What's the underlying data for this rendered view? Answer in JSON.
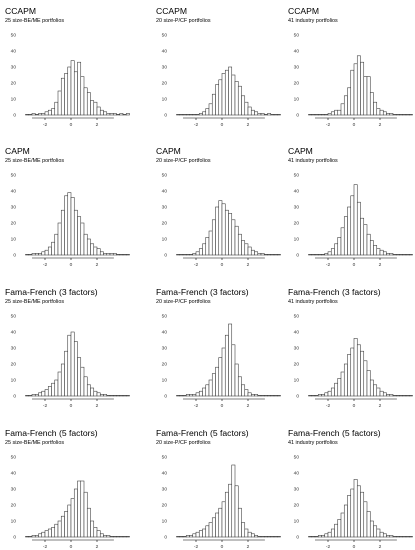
{
  "figure": {
    "background": "#ffffff",
    "bar_fill": "#ffffff",
    "bar_stroke": "#333333"
  },
  "chart_data": [
    {
      "type": "bar",
      "title": "CCAPM",
      "subtitle": "25 size-BE/ME portfolios",
      "ylim": [
        0,
        50
      ],
      "yticks": [
        0,
        10,
        20,
        30,
        40,
        50
      ],
      "xticks": [
        -2,
        0,
        2
      ],
      "xlim": [
        -4,
        4
      ],
      "bin_width": 0.25,
      "bins_start": -3.5,
      "values": [
        0,
        0,
        1,
        0,
        1,
        1,
        2,
        3,
        4,
        8,
        15,
        23,
        26,
        30,
        34,
        27,
        33,
        24,
        17,
        14,
        9,
        8,
        5,
        3,
        2,
        1,
        1,
        1,
        0,
        1,
        0,
        1
      ]
    },
    {
      "type": "bar",
      "title": "CCAPM",
      "subtitle": "20 size-P/CF portfolios",
      "ylim": [
        0,
        50
      ],
      "yticks": [
        0,
        10,
        20,
        30,
        40,
        50
      ],
      "xticks": [
        -2,
        0,
        2
      ],
      "xlim": [
        -4,
        4
      ],
      "bin_width": 0.25,
      "bins_start": -3.5,
      "values": [
        0,
        0,
        0,
        0,
        0,
        0,
        0,
        1,
        2,
        4,
        7,
        13,
        19,
        22,
        26,
        28,
        30,
        25,
        21,
        18,
        12,
        8,
        5,
        3,
        2,
        1,
        1,
        0,
        1,
        0,
        0,
        0
      ]
    },
    {
      "type": "bar",
      "title": "CCAPM",
      "subtitle": "41 industry portfolios",
      "ylim": [
        0,
        50
      ],
      "yticks": [
        0,
        10,
        20,
        30,
        40,
        50
      ],
      "xticks": [
        -2,
        0,
        2
      ],
      "xlim": [
        -4,
        4
      ],
      "bin_width": 0.25,
      "bins_start": -3.5,
      "values": [
        0,
        0,
        0,
        0,
        0,
        0,
        1,
        2,
        3,
        3,
        7,
        12,
        17,
        28,
        32,
        37,
        33,
        24,
        24,
        14,
        8,
        4,
        3,
        2,
        1,
        1,
        0,
        0,
        0,
        0,
        0,
        0
      ]
    },
    {
      "type": "bar",
      "title": "CAPM",
      "subtitle": "25 size-BE/ME portfolios",
      "ylim": [
        0,
        50
      ],
      "yticks": [
        0,
        10,
        20,
        30,
        40,
        50
      ],
      "xticks": [
        -2,
        0,
        2
      ],
      "xlim": [
        -4,
        4
      ],
      "bin_width": 0.25,
      "bins_start": -3.5,
      "values": [
        0,
        0,
        1,
        1,
        1,
        2,
        3,
        5,
        8,
        13,
        20,
        28,
        37,
        39,
        36,
        28,
        24,
        20,
        13,
        10,
        7,
        5,
        4,
        2,
        1,
        1,
        1,
        1,
        0,
        0,
        0,
        0
      ]
    },
    {
      "type": "bar",
      "title": "CAPM",
      "subtitle": "20 size-P/CF portfolios",
      "ylim": [
        0,
        50
      ],
      "yticks": [
        0,
        10,
        20,
        30,
        40,
        50
      ],
      "xticks": [
        -2,
        0,
        2
      ],
      "xlim": [
        -4,
        4
      ],
      "bin_width": 0.25,
      "bins_start": -3.5,
      "values": [
        0,
        0,
        0,
        0,
        0,
        1,
        2,
        4,
        7,
        11,
        15,
        22,
        30,
        34,
        32,
        28,
        26,
        22,
        18,
        13,
        9,
        7,
        5,
        3,
        2,
        1,
        1,
        0,
        0,
        0,
        0,
        0
      ]
    },
    {
      "type": "bar",
      "title": "CAPM",
      "subtitle": "41 industry portfolios",
      "ylim": [
        0,
        50
      ],
      "yticks": [
        0,
        10,
        20,
        30,
        40,
        50
      ],
      "xticks": [
        -2,
        0,
        2
      ],
      "xlim": [
        -4,
        4
      ],
      "bin_width": 0.25,
      "bins_start": -3.5,
      "values": [
        0,
        0,
        0,
        0,
        0,
        1,
        2,
        4,
        7,
        11,
        17,
        24,
        30,
        37,
        44,
        33,
        23,
        19,
        13,
        9,
        6,
        4,
        3,
        2,
        1,
        1,
        0,
        0,
        0,
        0,
        0,
        0
      ]
    },
    {
      "type": "bar",
      "title": "Fama-French (3 factors)",
      "subtitle": "25 size-BE/ME portfolios",
      "ylim": [
        0,
        50
      ],
      "yticks": [
        0,
        10,
        20,
        30,
        40,
        50
      ],
      "xticks": [
        -2,
        0,
        2
      ],
      "xlim": [
        -4,
        4
      ],
      "bin_width": 0.25,
      "bins_start": -3.5,
      "values": [
        0,
        0,
        1,
        1,
        2,
        3,
        4,
        6,
        8,
        10,
        15,
        20,
        28,
        38,
        40,
        34,
        24,
        18,
        12,
        7,
        5,
        3,
        2,
        1,
        1,
        0,
        0,
        0,
        0,
        0,
        0,
        0
      ]
    },
    {
      "type": "bar",
      "title": "Fama-French (3 factors)",
      "subtitle": "20 size-P/CF portfolios",
      "ylim": [
        0,
        50
      ],
      "yticks": [
        0,
        10,
        20,
        30,
        40,
        50
      ],
      "xticks": [
        -2,
        0,
        2
      ],
      "xlim": [
        -4,
        4
      ],
      "bin_width": 0.25,
      "bins_start": -3.5,
      "values": [
        0,
        0,
        0,
        1,
        1,
        1,
        2,
        3,
        5,
        7,
        10,
        14,
        18,
        24,
        30,
        38,
        45,
        32,
        20,
        12,
        7,
        4,
        2,
        1,
        1,
        0,
        0,
        0,
        0,
        0,
        0,
        0
      ]
    },
    {
      "type": "bar",
      "title": "Fama-French (3 factors)",
      "subtitle": "41 industry portfolios",
      "ylim": [
        0,
        50
      ],
      "yticks": [
        0,
        10,
        20,
        30,
        40,
        50
      ],
      "xticks": [
        -2,
        0,
        2
      ],
      "xlim": [
        -4,
        4
      ],
      "bin_width": 0.25,
      "bins_start": -3.5,
      "values": [
        0,
        0,
        0,
        1,
        1,
        2,
        3,
        5,
        8,
        11,
        15,
        20,
        26,
        30,
        36,
        32,
        28,
        22,
        16,
        10,
        7,
        5,
        3,
        2,
        1,
        1,
        0,
        0,
        0,
        0,
        0,
        0
      ]
    },
    {
      "type": "bar",
      "title": "Fama-French (5 factors)",
      "subtitle": "25 size-BE/ME portfolios",
      "ylim": [
        0,
        50
      ],
      "yticks": [
        0,
        10,
        20,
        30,
        40,
        50
      ],
      "xticks": [
        -2,
        0,
        2
      ],
      "xlim": [
        -4,
        4
      ],
      "bin_width": 0.25,
      "bins_start": -3.5,
      "values": [
        0,
        0,
        1,
        1,
        2,
        3,
        4,
        5,
        6,
        8,
        10,
        13,
        16,
        20,
        24,
        30,
        35,
        35,
        28,
        18,
        10,
        6,
        4,
        2,
        1,
        1,
        0,
        0,
        0,
        0,
        0,
        0
      ]
    },
    {
      "type": "bar",
      "title": "Fama-French (5 factors)",
      "subtitle": "20 size-P/CF portfolios",
      "ylim": [
        0,
        50
      ],
      "yticks": [
        0,
        10,
        20,
        30,
        40,
        50
      ],
      "xticks": [
        -2,
        0,
        2
      ],
      "xlim": [
        -4,
        4
      ],
      "bin_width": 0.25,
      "bins_start": -3.5,
      "values": [
        0,
        0,
        0,
        1,
        1,
        2,
        3,
        4,
        5,
        7,
        9,
        12,
        15,
        18,
        22,
        28,
        33,
        45,
        32,
        18,
        9,
        5,
        3,
        2,
        1,
        0,
        0,
        0,
        0,
        0,
        0,
        0
      ]
    },
    {
      "type": "bar",
      "title": "Fama-French (5 factors)",
      "subtitle": "41 industry portfolios",
      "ylim": [
        0,
        50
      ],
      "yticks": [
        0,
        10,
        20,
        30,
        40,
        50
      ],
      "xticks": [
        -2,
        0,
        2
      ],
      "xlim": [
        -4,
        4
      ],
      "bin_width": 0.25,
      "bins_start": -3.5,
      "values": [
        0,
        0,
        0,
        1,
        1,
        2,
        3,
        5,
        8,
        11,
        15,
        20,
        26,
        30,
        36,
        32,
        28,
        22,
        16,
        10,
        7,
        5,
        3,
        2,
        1,
        1,
        0,
        0,
        0,
        0,
        0,
        0
      ]
    }
  ]
}
